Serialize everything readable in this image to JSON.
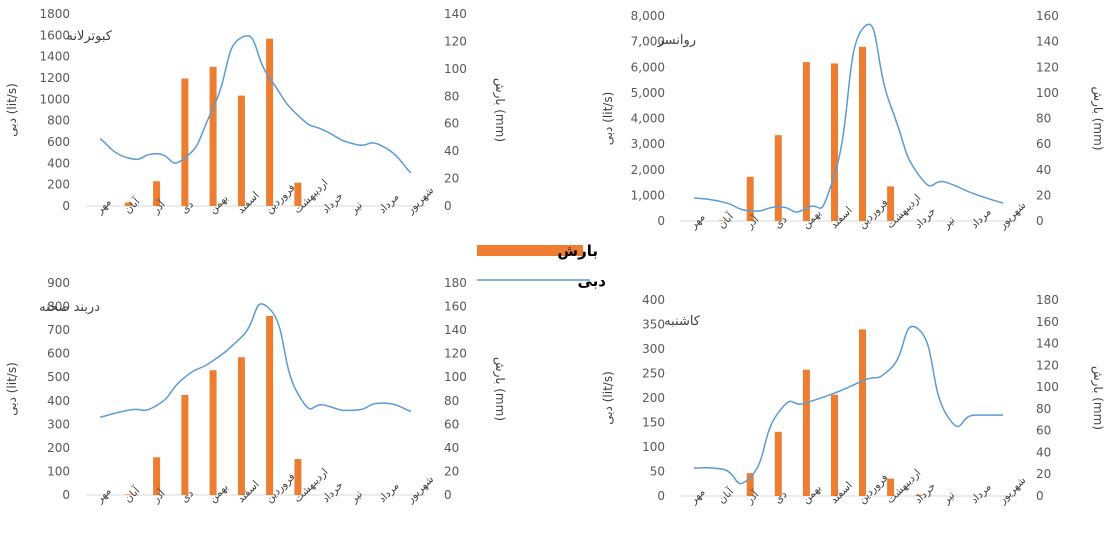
{
  "colors": {
    "bar": "#ED7D31",
    "line": "#5B9BD5",
    "axis": "#D9D9D9",
    "text": "#595959"
  },
  "legend": {
    "bar_label": "بارش",
    "line_label": "دبی"
  },
  "chart_data": [
    {
      "type": "bar+line",
      "title": "کبوترلانه",
      "categories": [
        "مهر",
        "آبان",
        "آذر",
        "دی",
        "بهمن",
        "اسفند",
        "فروردین",
        "اردیبهشت",
        "خرداد",
        "تیر",
        "مرداد",
        "شهریور"
      ],
      "series": [
        {
          "name": "بارش",
          "kind": "bar",
          "axis": "right",
          "values": [
            0,
            2.5,
            18,
            93,
            101.5,
            80.5,
            122,
            17,
            0,
            0,
            0,
            0
          ]
        },
        {
          "name": "دبی",
          "kind": "line",
          "axis": "left",
          "values": [
            630,
            450,
            490,
            450,
            920,
            1580,
            1200,
            850,
            700,
            580,
            560,
            310
          ]
        }
      ],
      "ylabel_left": "دبی (lit/s)",
      "ylabel_right": "بارش (mm)",
      "left_axis": {
        "min": 0,
        "max": 1800,
        "ticks": [
          "0",
          "200",
          "400",
          "600",
          "800",
          "1000",
          "1200",
          "1400",
          "1600",
          "1800"
        ]
      },
      "right_axis": {
        "min": 0,
        "max": 140,
        "ticks": [
          "0",
          "20",
          "40",
          "60",
          "80",
          "100",
          "120",
          "140"
        ]
      }
    },
    {
      "type": "bar+line",
      "title": "روانسر",
      "categories": [
        "مهر",
        "آبان",
        "آذر",
        "دی",
        "بهمن",
        "اسفند",
        "فروردین",
        "اردیبهشت",
        "خرداد",
        "تیر",
        "مرداد",
        "شهریور"
      ],
      "series": [
        {
          "name": "بارش",
          "kind": "bar",
          "axis": "right",
          "values": [
            0,
            0.5,
            34.5,
            67,
            124,
            123,
            136,
            27,
            0,
            0,
            0,
            0
          ]
        },
        {
          "name": "دبی",
          "kind": "line",
          "axis": "left",
          "values": [
            900,
            750,
            400,
            550,
            500,
            1800,
            7500,
            4500,
            1800,
            1500,
            1050,
            700
          ]
        }
      ],
      "ylabel_left": "دبی (lit/s)",
      "ylabel_right": "بارش (mm)",
      "left_axis": {
        "min": 0,
        "max": 8000,
        "ticks": [
          "0",
          "1,000",
          "2,000",
          "3,000",
          "4,000",
          "5,000",
          "6,000",
          "7,000",
          "8,000"
        ]
      },
      "right_axis": {
        "min": 0,
        "max": 160,
        "ticks": [
          "0",
          "20",
          "40",
          "60",
          "80",
          "100",
          "120",
          "140",
          "160"
        ]
      }
    },
    {
      "type": "bar+line",
      "title": "دربند صحنه",
      "categories": [
        "مهر",
        "آبان",
        "آذر",
        "دی",
        "بهمن",
        "اسفند",
        "فروردین",
        "اردیبهشت",
        "خرداد",
        "تیر",
        "مرداد",
        "شهریور"
      ],
      "series": [
        {
          "name": "بارش",
          "kind": "bar",
          "axis": "right",
          "values": [
            0,
            0.5,
            32,
            85,
            106,
            117,
            152,
            30.5,
            0,
            0,
            0,
            0
          ]
        },
        {
          "name": "دبی",
          "kind": "line",
          "axis": "left",
          "values": [
            330,
            360,
            380,
            500,
            570,
            670,
            790,
            430,
            380,
            360,
            390,
            355
          ]
        }
      ],
      "ylabel_left": "دبی (lit/s)",
      "ylabel_right": "بارش (mm)",
      "left_axis": {
        "min": 0,
        "max": 900,
        "ticks": [
          "0",
          "100",
          "200",
          "300",
          "400",
          "500",
          "600",
          "700",
          "800",
          "900"
        ]
      },
      "right_axis": {
        "min": 0,
        "max": 180,
        "ticks": [
          "0",
          "20",
          "40",
          "60",
          "80",
          "100",
          "120",
          "140",
          "160",
          "180"
        ]
      }
    },
    {
      "type": "bar+line",
      "title": "کاشنبه",
      "categories": [
        "مهر",
        "آبان",
        "آذر",
        "دی",
        "بهمن",
        "اسفند",
        "فروردین",
        "اردیبهشت",
        "خرداد",
        "تیر",
        "مرداد",
        "شهریور"
      ],
      "series": [
        {
          "name": "بارش",
          "kind": "bar",
          "axis": "right",
          "values": [
            0,
            0,
            21,
            59,
            116,
            93,
            153,
            16,
            1,
            0,
            0,
            0
          ]
        },
        {
          "name": "دبی",
          "kind": "line",
          "axis": "left",
          "values": [
            57,
            55,
            38,
            170,
            190,
            210,
            235,
            260,
            340,
            165,
            165,
            165
          ]
        }
      ],
      "ylabel_left": "دبی (lit/s)",
      "ylabel_right": "بارش (mm)",
      "left_axis": {
        "min": 0,
        "max": 400,
        "ticks": [
          "0",
          "50",
          "100",
          "150",
          "200",
          "250",
          "300",
          "350",
          "400"
        ]
      },
      "right_axis": {
        "min": 0,
        "max": 180,
        "ticks": [
          "0",
          "20",
          "40",
          "60",
          "80",
          "100",
          "120",
          "140",
          "160",
          "180"
        ]
      }
    }
  ]
}
